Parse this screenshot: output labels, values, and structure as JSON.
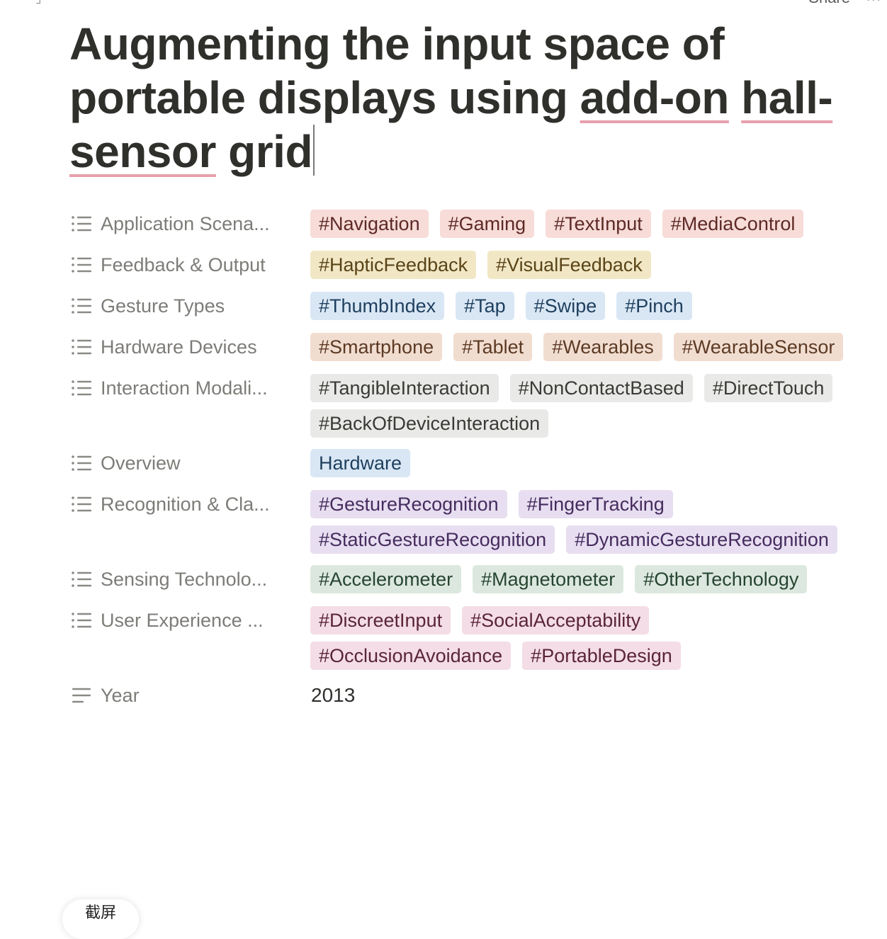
{
  "topbar": {
    "share_label": "Share",
    "more_label": "⋯"
  },
  "page": {
    "title_parts": {
      "p1": "Augmenting the input space of portable displays using ",
      "p2": "add-on",
      "p3": " ",
      "p4": "hall-",
      "p5": "sensor",
      "p6": " grid"
    }
  },
  "properties": [
    {
      "label": "Application Scena...",
      "icon": "list-icon",
      "color": "red",
      "values": [
        "#Navigation",
        "#Gaming",
        "#TextInput",
        "#MediaControl"
      ]
    },
    {
      "label": "Feedback & Output",
      "icon": "list-icon",
      "color": "yellow",
      "values": [
        "#HapticFeedback",
        "#VisualFeedback"
      ]
    },
    {
      "label": "Gesture Types",
      "icon": "list-icon",
      "color": "blue",
      "values": [
        "#ThumbIndex",
        "#Tap",
        "#Swipe",
        "#Pinch"
      ]
    },
    {
      "label": "Hardware Devices",
      "icon": "list-icon",
      "color": "brown",
      "values": [
        "#Smartphone",
        "#Tablet",
        "#Wearables",
        "#WearableSensor"
      ]
    },
    {
      "label": "Interaction Modali...",
      "icon": "list-icon",
      "color": "gray",
      "values": [
        "#TangibleInteraction",
        "#NonContactBased",
        "#DirectTouch",
        "#BackOfDeviceInteraction"
      ]
    },
    {
      "label": "Overview",
      "icon": "list-icon",
      "color": "blue",
      "values": [
        "Hardware"
      ]
    },
    {
      "label": "Recognition & Cla...",
      "icon": "list-icon",
      "color": "purple",
      "values": [
        "#GestureRecognition",
        "#FingerTracking",
        "#StaticGestureRecognition",
        "#DynamicGestureRecognition"
      ]
    },
    {
      "label": "Sensing Technolo...",
      "icon": "list-icon",
      "color": "green",
      "values": [
        "#Accelerometer",
        "#Magnetometer",
        "#OtherTechnology"
      ]
    },
    {
      "label": "User Experience ...",
      "icon": "list-icon",
      "color": "pink",
      "values": [
        "#DiscreetInput",
        "#SocialAcceptability",
        "#OcclusionAvoidance",
        "#PortableDesign"
      ]
    },
    {
      "label": "Year",
      "icon": "text-lines-icon",
      "color": "none",
      "value": "2013"
    }
  ],
  "overlay": {
    "screenshot_label": "截屏"
  },
  "colors": {
    "red": "#f7dcd8",
    "yellow": "#f1e7c4",
    "blue": "#d9e7f5",
    "brown": "#f1ddd0",
    "gray": "#e9e9e7",
    "purple": "#e7def1",
    "green": "#dce8df",
    "pink": "#f4dde6"
  }
}
